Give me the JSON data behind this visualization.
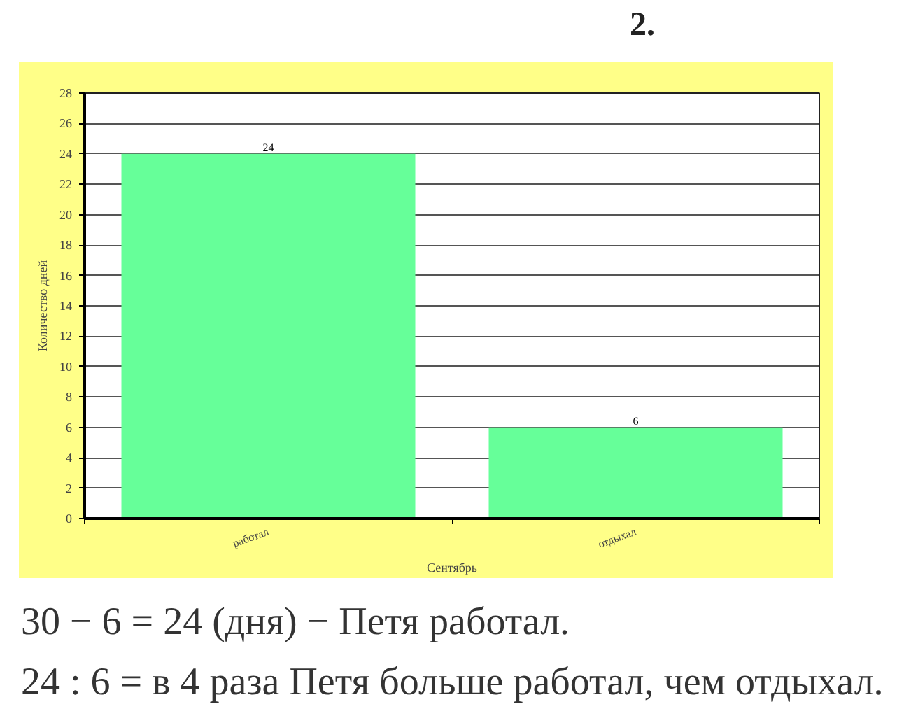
{
  "chart_data": {
    "type": "bar",
    "title": "2.",
    "categories": [
      "работал",
      "отдыхал"
    ],
    "values": [
      24,
      6
    ],
    "color": "#66ff99",
    "xlabel": "Сентябрь",
    "ylabel": "Количество дней",
    "ylim": [
      0,
      28
    ],
    "yticks": [
      0,
      2,
      4,
      6,
      8,
      10,
      12,
      14,
      16,
      18,
      20,
      22,
      24,
      26,
      28
    ],
    "grid": "y",
    "data_labels": true,
    "annotations": [
      "30 − 6 = 24 (дня) − Петя работал.",
      "24 : 6 = в 4 раза Петя больше работал, чем отдыхал."
    ]
  }
}
